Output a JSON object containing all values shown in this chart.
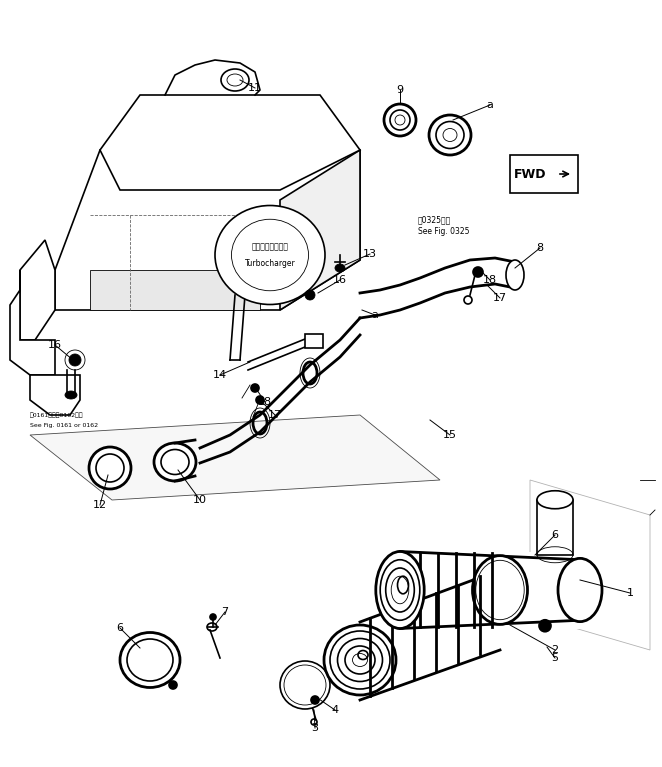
{
  "bg_color": "#ffffff",
  "fig_width": 6.62,
  "fig_height": 7.67,
  "dpi": 100,
  "line_color": "#000000",
  "lw_main": 1.2,
  "lw_thick": 2.0,
  "lw_thin": 0.6,
  "parts": {
    "fwd_text": "FWD",
    "turbo_ja": "ターボチャージャ",
    "turbo_en": "Turbocharger",
    "see0325_ja": "図0325参照",
    "see0325_en": "See Fig. 0325",
    "see0161_ja": "図0161または0162参照",
    "see0161_en": "See Fig. 0161 or 0162"
  }
}
